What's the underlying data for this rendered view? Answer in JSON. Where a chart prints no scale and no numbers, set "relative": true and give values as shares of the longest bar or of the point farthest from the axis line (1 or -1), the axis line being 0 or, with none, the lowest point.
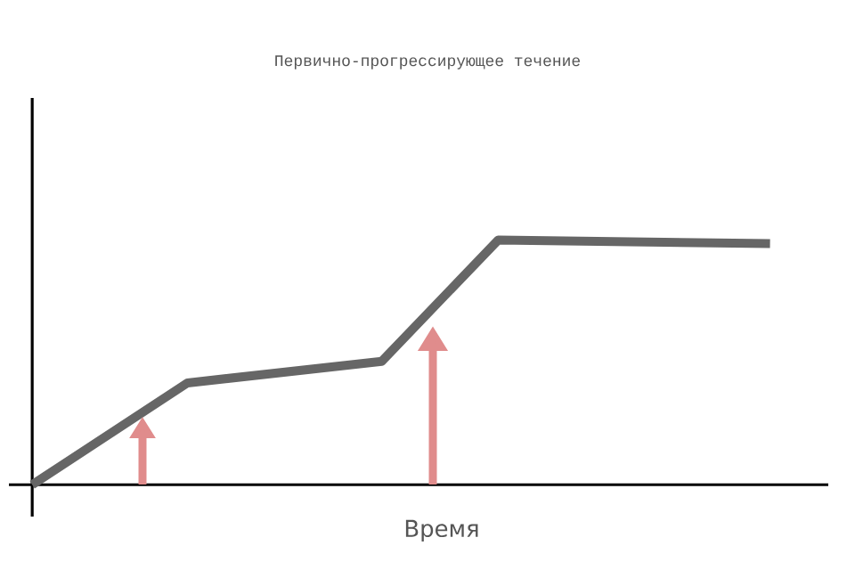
{
  "chart_data": {
    "type": "line",
    "title": "Первично-прогрессирующее течение",
    "xlabel": "Время",
    "relative": true,
    "categories": [
      null,
      null,
      null,
      null,
      null,
      null,
      null,
      null,
      null,
      null,
      null,
      null,
      null,
      null,
      null,
      null,
      null,
      null,
      null,
      null
    ],
    "tick_labels": false,
    "series": [
      {
        "color": "#666666",
        "values": [
          0,
          null,
          null,
          null,
          0.416,
          null,
          null,
          null,
          null,
          0.504,
          null,
          null,
          1,
          null,
          null,
          null,
          null,
          null,
          null,
          0.985
        ]
      }
    ]
  }
}
